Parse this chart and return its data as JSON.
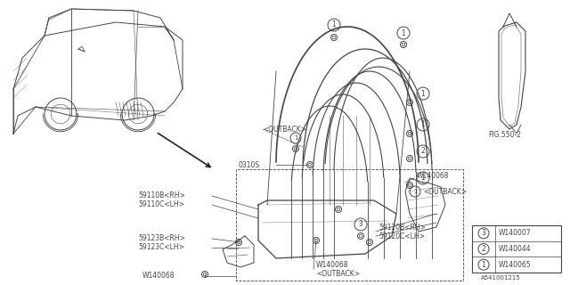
{
  "bg_color": "#ffffff",
  "line_color": "#444444",
  "text_color": "#444444",
  "fig_width": 6.4,
  "fig_height": 3.2,
  "dpi": 100,
  "legend_items": [
    {
      "num": "1",
      "label": "W140065"
    },
    {
      "num": "2",
      "label": "W140044"
    },
    {
      "num": "3",
      "label": "W140007"
    }
  ]
}
